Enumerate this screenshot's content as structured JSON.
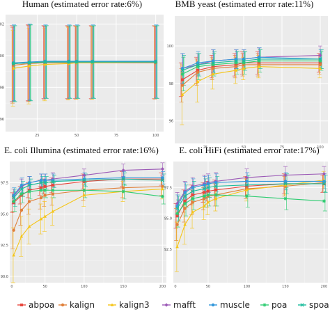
{
  "methods": [
    "abpoa",
    "kalign",
    "kalign3",
    "mafft",
    "muscle",
    "poa",
    "spoa"
  ],
  "colors": {
    "abpoa": "#e8473d",
    "kalign": "#e0803a",
    "kalign3": "#f5c518",
    "mafft": "#9b59b6",
    "muscle": "#3498db",
    "poa": "#2ecc71",
    "spoa": "#1abc9c"
  },
  "markers": {
    "abpoa": "square",
    "kalign": "circle",
    "kalign3": "triangle",
    "mafft": "diamond",
    "muscle": "circle",
    "poa": "asterisk",
    "spoa": "cross"
  },
  "chart_data": [
    {
      "type": "line",
      "title": "Human (estimated error rate:6%)",
      "x": [
        10,
        20,
        30,
        45,
        50,
        60,
        100
      ],
      "xticks": [
        25,
        50,
        75,
        100
      ],
      "xlim": [
        5,
        105
      ],
      "ylim": [
        95.2,
        102.6
      ],
      "yticks": [
        "96",
        "98",
        "100",
        "102"
      ],
      "ytick_values": [
        96,
        98,
        100,
        102
      ],
      "series": [
        {
          "name": "abpoa",
          "values": [
            99.5,
            99.55,
            99.6,
            99.6,
            99.6,
            99.6,
            99.6
          ],
          "err": [
            2.4,
            2.4,
            2.3,
            2.3,
            2.3,
            2.3,
            2.3
          ]
        },
        {
          "name": "kalign",
          "values": [
            99.4,
            99.5,
            99.55,
            99.55,
            99.55,
            99.55,
            99.55
          ],
          "err": [
            2.4,
            2.4,
            2.3,
            2.3,
            2.3,
            2.3,
            2.3
          ]
        },
        {
          "name": "kalign3",
          "values": [
            99.2,
            99.35,
            99.45,
            99.5,
            99.55,
            99.55,
            99.6
          ],
          "err": [
            2.4,
            2.4,
            2.3,
            2.3,
            2.3,
            2.3,
            2.3
          ]
        },
        {
          "name": "mafft",
          "values": [
            99.5,
            99.55,
            99.6,
            99.6,
            99.6,
            99.6,
            99.6
          ],
          "err": [
            2.4,
            2.4,
            2.3,
            2.3,
            2.3,
            2.3,
            2.3
          ]
        },
        {
          "name": "muscle",
          "values": [
            99.55,
            99.6,
            99.65,
            99.65,
            99.65,
            99.65,
            99.65
          ],
          "err": [
            2.4,
            2.4,
            2.3,
            2.3,
            2.3,
            2.3,
            2.3
          ]
        },
        {
          "name": "poa",
          "values": [
            99.5,
            99.55,
            99.6,
            99.6,
            99.6,
            99.6,
            99.6
          ],
          "err": [
            2.4,
            2.4,
            2.3,
            2.3,
            2.3,
            2.3,
            2.3
          ]
        },
        {
          "name": "spoa",
          "values": [
            99.5,
            99.55,
            99.6,
            99.6,
            99.6,
            99.6,
            99.6
          ],
          "err": [
            2.4,
            2.4,
            2.3,
            2.3,
            2.3,
            2.3,
            2.3
          ]
        }
      ]
    },
    {
      "type": "line",
      "title": "BMB yeast (estimated error rate:11%)",
      "x": [
        10,
        20,
        30,
        45,
        50,
        60,
        100
      ],
      "xticks": [
        25,
        50,
        75,
        100
      ],
      "xlim": [
        5,
        105
      ],
      "ylim": [
        94.8,
        101.6
      ],
      "yticks": [
        "96",
        "98",
        "100"
      ],
      "ytick_values": [
        96,
        98,
        100
      ],
      "series": [
        {
          "name": "abpoa",
          "values": [
            98.2,
            98.7,
            98.9,
            99.0,
            99.1,
            99.1,
            99.1
          ],
          "err": [
            0.9,
            0.7,
            0.6,
            0.6,
            0.6,
            0.6,
            0.5
          ]
        },
        {
          "name": "kalign",
          "values": [
            97.9,
            98.6,
            98.8,
            98.9,
            99.0,
            99.0,
            99.0
          ],
          "err": [
            0.9,
            0.7,
            0.6,
            0.6,
            0.6,
            0.6,
            0.5
          ]
        },
        {
          "name": "kalign3",
          "values": [
            97.4,
            98.1,
            98.5,
            98.7,
            98.8,
            98.9,
            98.8
          ],
          "err": [
            1.6,
            1.1,
            0.8,
            0.7,
            0.6,
            0.6,
            0.5
          ]
        },
        {
          "name": "mafft",
          "values": [
            98.8,
            99.0,
            99.2,
            99.3,
            99.3,
            99.4,
            99.5
          ],
          "err": [
            0.8,
            0.6,
            0.6,
            0.5,
            0.5,
            0.5,
            0.5
          ]
        },
        {
          "name": "muscle",
          "values": [
            98.8,
            99.1,
            99.2,
            99.3,
            99.3,
            99.4,
            99.3
          ],
          "err": [
            0.8,
            0.6,
            0.6,
            0.5,
            0.5,
            0.5,
            0.5
          ]
        },
        {
          "name": "poa",
          "values": [
            98.5,
            98.9,
            99.0,
            99.1,
            99.1,
            99.2,
            99.2
          ],
          "err": [
            0.9,
            0.7,
            0.6,
            0.6,
            0.6,
            0.6,
            0.5
          ]
        },
        {
          "name": "spoa",
          "values": [
            98.7,
            99.0,
            99.1,
            99.2,
            99.2,
            99.3,
            99.3
          ],
          "err": [
            0.8,
            0.6,
            0.6,
            0.5,
            0.5,
            0.5,
            0.5
          ]
        }
      ]
    },
    {
      "type": "line",
      "title": "E. coli Illumina (estimated error rate:16%)",
      "x": [
        10,
        20,
        30,
        45,
        50,
        60,
        100,
        150,
        200
      ],
      "xticks": [
        0,
        50,
        100,
        150,
        200
      ],
      "xlim": [
        5,
        205
      ],
      "ylim": [
        89.5,
        99.2
      ],
      "yticks": [
        "90.0",
        "92.5",
        "95.0",
        "97.5"
      ],
      "ytick_values": [
        90,
        92.5,
        95,
        97.5
      ],
      "series": [
        {
          "name": "abpoa",
          "values": [
            95.9,
            96.5,
            96.9,
            97.1,
            97.2,
            97.3,
            97.6,
            97.8,
            97.8
          ],
          "err": [
            0.8,
            0.7,
            0.6,
            0.6,
            0.6,
            0.6,
            0.6,
            0.6,
            0.5
          ]
        },
        {
          "name": "kalign",
          "values": [
            93.7,
            95.3,
            96.0,
            96.3,
            96.5,
            96.6,
            96.9,
            97.1,
            97.2
          ],
          "err": [
            1.5,
            1.2,
            1.0,
            0.9,
            0.9,
            0.9,
            0.8,
            0.8,
            0.7
          ]
        },
        {
          "name": "kalign3",
          "values": [
            91.7,
            93.2,
            94.0,
            94.6,
            94.8,
            95.2,
            96.5,
            96.8,
            97.0
          ],
          "err": [
            2.2,
            1.6,
            1.4,
            1.2,
            1.2,
            1.1,
            0.9,
            0.8,
            0.8
          ]
        },
        {
          "name": "mafft",
          "values": [
            96.4,
            97.2,
            97.5,
            97.7,
            97.7,
            97.8,
            98.1,
            98.5,
            98.6
          ],
          "err": [
            0.6,
            0.6,
            0.5,
            0.5,
            0.5,
            0.5,
            0.5,
            0.5,
            0.5
          ]
        },
        {
          "name": "muscle",
          "values": [
            96.5,
            97.3,
            97.5,
            97.7,
            97.7,
            97.7,
            97.8,
            97.9,
            97.9
          ],
          "err": [
            0.6,
            0.6,
            0.5,
            0.5,
            0.5,
            0.5,
            0.5,
            0.5,
            0.5
          ]
        },
        {
          "name": "poa",
          "values": [
            96.0,
            96.6,
            96.8,
            96.9,
            96.9,
            96.9,
            96.9,
            96.8,
            96.4
          ],
          "err": [
            0.8,
            0.7,
            0.6,
            0.6,
            0.6,
            0.6,
            0.6,
            0.6,
            0.6
          ]
        },
        {
          "name": "spoa",
          "values": [
            96.3,
            97.0,
            97.3,
            97.5,
            97.5,
            97.6,
            97.7,
            97.8,
            97.7
          ],
          "err": [
            0.7,
            0.6,
            0.5,
            0.5,
            0.5,
            0.5,
            0.5,
            0.5,
            0.5
          ]
        }
      ]
    },
    {
      "type": "line",
      "title": "E. coli HiFi (estimated error rate:17%)",
      "x": [
        10,
        20,
        30,
        45,
        50,
        60,
        100,
        150,
        200
      ],
      "xticks": [
        0,
        50,
        100,
        150,
        200
      ],
      "xlim": [
        5,
        205
      ],
      "ylim": [
        89.8,
        99.6
      ],
      "yticks": [
        "92.5",
        "95.0",
        "97.5"
      ],
      "ytick_values": [
        92.5,
        95,
        97.5
      ],
      "series": [
        {
          "name": "abpoa",
          "values": [
            95.2,
            96.4,
            96.9,
            97.1,
            97.2,
            97.3,
            97.6,
            97.8,
            97.8
          ],
          "err": [
            1.0,
            0.9,
            0.8,
            0.8,
            0.8,
            0.8,
            0.8,
            0.8,
            0.7
          ]
        },
        {
          "name": "kalign",
          "values": [
            94.5,
            95.8,
            96.3,
            96.6,
            96.8,
            96.9,
            97.4,
            97.6,
            97.9
          ],
          "err": [
            1.3,
            1.1,
            1.0,
            0.9,
            0.9,
            0.9,
            0.8,
            0.8,
            0.7
          ]
        },
        {
          "name": "kalign3",
          "values": [
            92.7,
            94.5,
            95.5,
            96.0,
            96.3,
            96.6,
            97.3,
            97.7,
            98.1
          ],
          "err": [
            2.0,
            1.6,
            1.3,
            1.1,
            1.0,
            1.0,
            0.9,
            0.8,
            0.7
          ]
        },
        {
          "name": "mafft",
          "values": [
            96.2,
            97.2,
            97.6,
            97.8,
            97.9,
            98.0,
            98.3,
            98.5,
            98.6
          ],
          "err": [
            0.9,
            0.8,
            0.7,
            0.7,
            0.7,
            0.7,
            0.7,
            0.7,
            0.6
          ]
        },
        {
          "name": "muscle",
          "values": [
            96.0,
            97.1,
            97.5,
            97.7,
            97.8,
            97.9,
            98.0,
            98.0,
            98.0
          ],
          "err": [
            0.9,
            0.8,
            0.7,
            0.7,
            0.7,
            0.7,
            0.7,
            0.7,
            0.6
          ]
        },
        {
          "name": "poa",
          "values": [
            95.4,
            96.2,
            96.6,
            96.8,
            96.9,
            96.9,
            96.8,
            96.6,
            96.4
          ],
          "err": [
            1.1,
            1.0,
            0.9,
            0.9,
            0.9,
            0.9,
            0.9,
            0.9,
            0.8
          ]
        },
        {
          "name": "spoa",
          "values": [
            95.8,
            96.8,
            97.2,
            97.4,
            97.5,
            97.6,
            97.7,
            97.8,
            97.8
          ],
          "err": [
            1.0,
            0.9,
            0.8,
            0.8,
            0.8,
            0.8,
            0.8,
            0.8,
            0.7
          ]
        }
      ]
    }
  ]
}
